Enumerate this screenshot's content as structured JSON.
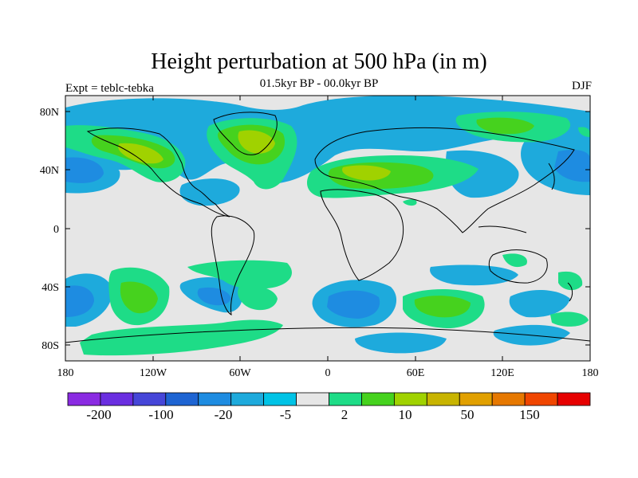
{
  "title": "Height perturbation at 500 hPa (in m)",
  "subtitle": "01.5kyr BP - 00.0kyr BP",
  "left_label": "Expt = teblc-tebka",
  "right_label": "DJF",
  "map": {
    "lat_labels": [
      "80N",
      "40N",
      "0",
      "40S",
      "80S"
    ],
    "lon_labels": [
      "180",
      "120W",
      "60W",
      "0",
      "60E",
      "120E",
      "180"
    ]
  },
  "colorbar": {
    "colors": [
      "#8a2be2",
      "#6a2ee0",
      "#4646d8",
      "#1e64d2",
      "#1e8ce1",
      "#1eaadc",
      "#00c3e6",
      "#e6e6e6",
      "#1edc87",
      "#46d21e",
      "#a0d200",
      "#c8b400",
      "#e1a000",
      "#e67800",
      "#f04600",
      "#e60000"
    ],
    "labels": [
      "-200",
      "-100",
      "-20",
      "-5",
      "2",
      "10",
      "50",
      "150"
    ]
  }
}
